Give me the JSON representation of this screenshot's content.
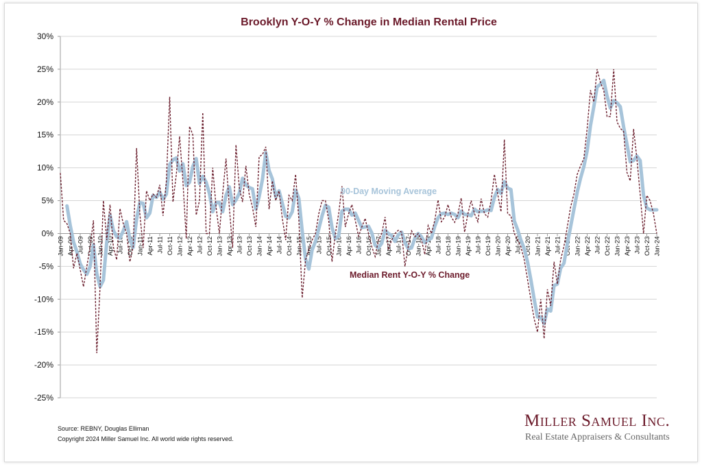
{
  "chart_data": {
    "type": "line",
    "title": "Brooklyn Y-O-Y % Change in Median Rental Price",
    "xlabel": "",
    "ylabel": "",
    "ylim": [
      -25,
      30
    ],
    "yticks": [
      "30%",
      "25%",
      "20%",
      "15%",
      "10%",
      "5%",
      "0%",
      "-5%",
      "-10%",
      "-15%",
      "-20%",
      "-25%"
    ],
    "ytick_values": [
      30,
      25,
      20,
      15,
      10,
      5,
      0,
      -5,
      -10,
      -15,
      -20,
      -25
    ],
    "x_start": "Jan-09",
    "x_end": "Jan-24",
    "x_frequency": "monthly",
    "xtick_labels": [
      "Jan-09",
      "Apr-09",
      "Jul-09",
      "Oct-09",
      "Jan-10",
      "Apr-10",
      "Jul-10",
      "Oct-10",
      "Jan-11",
      "Apr-11",
      "Jul-11",
      "Oct-11",
      "Jan-12",
      "Apr-12",
      "Jul-12",
      "Oct-12",
      "Jan-13",
      "Apr-13",
      "Jul-13",
      "Oct-13",
      "Jan-14",
      "Apr-14",
      "Jul-14",
      "Oct-14",
      "Jan-15",
      "Apr-15",
      "Jul-15",
      "Oct-15",
      "Jan-16",
      "Apr-16",
      "Jul-16",
      "Oct-16",
      "Jan-17",
      "Apr-17",
      "Jul-17",
      "Oct-17",
      "Jan-18",
      "Apr-18",
      "Jul-18",
      "Oct-18",
      "Jan-19",
      "Apr-19",
      "Jul-19",
      "Oct-19",
      "Jan-20",
      "Apr-20",
      "Jul-20",
      "Oct-20",
      "Jan-21",
      "Apr-21",
      "Jul-21",
      "Oct-21",
      "Jan-22",
      "Apr-22",
      "Jul-22",
      "Oct-22",
      "Jan-23",
      "Apr-23",
      "Jul-23",
      "Oct-23",
      "Jan-24"
    ],
    "grid": true,
    "series": [
      {
        "name": "Median Rent Y-O-Y % Change",
        "color": "#6b1f2e",
        "style": "dashed",
        "start": "Jan-09",
        "values": [
          9.2,
          2,
          1.5,
          0,
          -5.3,
          -3,
          -5.5,
          -8.1,
          -5,
          -2,
          2,
          -18.2,
          -8,
          5,
          -1,
          4.4,
          -2,
          -4,
          3.8,
          1.5,
          0,
          -4.3,
          -2,
          13,
          3,
          -2.2,
          6.5,
          5,
          6,
          5.5,
          7.4,
          2.7,
          8,
          20.8,
          4.8,
          9,
          14.8,
          8,
          -0.8,
          16.3,
          15,
          2.8,
          5,
          18.4,
          0,
          0,
          10,
          4,
          0,
          6,
          11.4,
          4,
          -2.2,
          13.5,
          7,
          4.8,
          10.3,
          6,
          4,
          1,
          11.7,
          12,
          13.2,
          3.7,
          8,
          5,
          6.5,
          2.3,
          -1,
          5.8,
          5,
          9,
          2,
          -9.8,
          -4,
          -2.5,
          -1,
          0,
          3,
          5,
          5,
          2,
          -4.3,
          0,
          3,
          7.2,
          1,
          3,
          4.4,
          2,
          -0.4,
          1,
          2.3,
          0,
          -2,
          -3.5,
          -1,
          0,
          2.5,
          -2.5,
          -1,
          0,
          0.5,
          0.2,
          -5,
          -2,
          0.4,
          -0.5,
          0,
          -1,
          -3.2,
          1.2,
          0,
          2,
          5.1,
          1.8,
          2.5,
          4.4,
          2.5,
          1.7,
          3,
          5.4,
          0.2,
          3,
          5,
          3,
          1.8,
          5.3,
          3,
          2.5,
          5,
          9,
          6,
          3.3,
          14.3,
          3,
          2.7,
          0,
          -1,
          -2,
          -4,
          -7,
          -10,
          -13,
          -15,
          -10,
          -16,
          -8.5,
          -11,
          -4.3,
          -7.7,
          -4,
          -1.9,
          1,
          4,
          6,
          9,
          10.3,
          11.4,
          16,
          21.8,
          20,
          25,
          23,
          21.8,
          17.8,
          17.8,
          25,
          17,
          16,
          15.5,
          9.3,
          8,
          15.9,
          11.4,
          6,
          0,
          5.8,
          5,
          3,
          0
        ]
      },
      {
        "name": "90-Day Moving Average",
        "color": "#a7c4da",
        "style": "solid",
        "start": "Mar-09",
        "values": [
          4.2,
          1.2,
          -1.3,
          -2.8,
          -4.6,
          -5.5,
          -6.2,
          -5.0,
          -1.7,
          -6.1,
          -8.1,
          -7.1,
          -1.3,
          2.8,
          0.5,
          -0.5,
          -0.7,
          0.4,
          1.8,
          -0.9,
          -2.1,
          2.2,
          4.7,
          4.6,
          2.4,
          3.1,
          5.8,
          5.5,
          6.3,
          5.2,
          6.0,
          10.5,
          11.2,
          11.5,
          9.5,
          10.6,
          7.3,
          7.8,
          10.2,
          11.4,
          7.6,
          8.7,
          7.8,
          6.1,
          3.3,
          4.7,
          4.7,
          3.3,
          5.8,
          7.1,
          4.4,
          5.1,
          6.1,
          8.4,
          7.4,
          7.0,
          6.8,
          3.7,
          5.6,
          8.2,
          12.3,
          9.6,
          8.3,
          5.6,
          6.5,
          4.6,
          2.6,
          2.4,
          3.3,
          6.6,
          5.3,
          0.4,
          -3.9,
          -5.4,
          -2.5,
          -1.2,
          0.7,
          2.7,
          4.3,
          4.0,
          0.9,
          -0.8,
          -0.4,
          3.4,
          3.7,
          3.7,
          2.8,
          3.1,
          2.0,
          0.9,
          1.0,
          1.1,
          0.1,
          -1.8,
          -2.2,
          -1.5,
          0.5,
          0,
          -0.3,
          -1.2,
          -0.2,
          0.2,
          -1.4,
          -2.3,
          -2.2,
          -0.7,
          0,
          -0.5,
          -1.4,
          -1.0,
          -0.7,
          1.1,
          2.4,
          3.0,
          3.1,
          2.9,
          3.1,
          2.9,
          2.4,
          3.4,
          2.9,
          2.9,
          2.7,
          3.7,
          3.3,
          3.4,
          3.4,
          3.6,
          3.5,
          5.5,
          6.7,
          6.1,
          7.9,
          6.9,
          6.7,
          1.9,
          0.6,
          -1.0,
          -2.3,
          -4.3,
          -7.0,
          -10,
          -12.7,
          -12.7,
          -13.7,
          -11.5,
          -11.8,
          -7.9,
          -7.7,
          -5.3,
          -4.5,
          -1.6,
          1.0,
          3.7,
          6.3,
          8.4,
          10.2,
          12.6,
          16.4,
          19.3,
          22.3,
          22.7,
          23.3,
          20.9,
          19.1,
          20.2,
          19.9,
          19.3,
          16.2,
          13.6,
          10.9,
          11.1,
          11.8,
          11.1,
          5.8,
          3.9,
          3.6,
          3.6,
          3.6
        ]
      }
    ],
    "annotations": [
      "90-Day Moving Average",
      "Median Rent Y-O-Y % Change"
    ]
  },
  "footer": {
    "source": "Source: REBNY, Douglas Elliman",
    "copyright": "Copyright 2024 Miller Samuel Inc.  All world wide rights reserved."
  },
  "logo": {
    "name": "Miller Samuel Inc.",
    "tagline": "Real Estate Appraisers & Consultants"
  }
}
